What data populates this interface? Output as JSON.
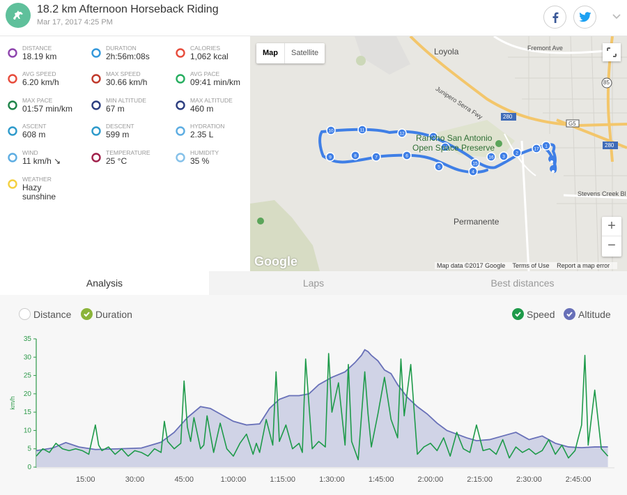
{
  "activity": {
    "title": "18.2 km Afternoon Horseback Riding",
    "datetime": "Mar 17, 2017 4:25 PM",
    "sport_icon": "horse-icon",
    "accent": "#5fc09b"
  },
  "share": {
    "facebook_icon": "f",
    "twitter_icon": "twitter-bird"
  },
  "stats": [
    {
      "label": "DISTANCE",
      "value": "18.19 km",
      "icon": "distance-icon",
      "color": "#8e44ad"
    },
    {
      "label": "DURATION",
      "value": "2h:56m:08s",
      "icon": "stopwatch-icon",
      "color": "#3498db"
    },
    {
      "label": "CALORIES",
      "value": "1,062 kcal",
      "icon": "flame-icon",
      "color": "#e74c3c"
    },
    {
      "label": "AVG SPEED",
      "value": "6.20 km/h",
      "icon": "speedometer-icon",
      "color": "#e74c3c"
    },
    {
      "label": "MAX SPEED",
      "value": "30.66 km/h",
      "icon": "speedometer-icon",
      "color": "#c0392b"
    },
    {
      "label": "AVG PACE",
      "value": "09:41 min/km",
      "icon": "pace-icon",
      "color": "#27ae60"
    },
    {
      "label": "MAX PACE",
      "value": "01:57 min/km",
      "icon": "pace-icon",
      "color": "#1e8449"
    },
    {
      "label": "MIN ALTITUDE",
      "value": "67 m",
      "icon": "mountain-icon",
      "color": "#2c3e80"
    },
    {
      "label": "MAX ALTITUDE",
      "value": "460 m",
      "icon": "mountain-icon",
      "color": "#2c3e80"
    },
    {
      "label": "ASCENT",
      "value": "608 m",
      "icon": "ascent-icon",
      "color": "#2e9acb"
    },
    {
      "label": "DESCENT",
      "value": "599 m",
      "icon": "descent-icon",
      "color": "#2e9acb"
    },
    {
      "label": "HYDRATION",
      "value": "2.35 L",
      "icon": "drops-icon",
      "color": "#5dade2"
    },
    {
      "label": "WIND",
      "value": "11 km/h ↘",
      "icon": "wind-icon",
      "color": "#5dade2"
    },
    {
      "label": "TEMPERATURE",
      "value": "25 °C",
      "icon": "thermometer-icon",
      "color": "#a0204a"
    },
    {
      "label": "HUMIDITY",
      "value": "35 %",
      "icon": "humidity-icon",
      "color": "#85c1e9"
    },
    {
      "label": "WEATHER",
      "value": "Hazy\nsunshine",
      "icon": "sun-haze-icon",
      "color": "#f4d03f"
    }
  ],
  "map": {
    "type_map": "Map",
    "type_satellite": "Satellite",
    "zoom_in": "+",
    "zoom_out": "−",
    "labels": {
      "loyola": "Loyola",
      "fremont": "Fremont Ave",
      "juniper": "Junipero Serra Fwy",
      "rancho1": "Rancho San Antonio",
      "rancho2": "Open Space Preserve",
      "permanente": "Permanente",
      "stevens": "Stevens Creek Bl",
      "i280a": "280",
      "i280b": "280",
      "g5": "G5",
      "r85": "85"
    },
    "google": "Google",
    "footer": {
      "data": "Map data ©2017 Google",
      "terms": "Terms of Use",
      "report": "Report a map error"
    },
    "route_color": "#3f7fe6",
    "markers": [
      "1",
      "2",
      "3",
      "4",
      "5",
      "6",
      "7",
      "8",
      "9",
      "10",
      "11",
      "12",
      "13",
      "14",
      "15",
      "16",
      "17"
    ]
  },
  "tabs": {
    "analysis": "Analysis",
    "laps": "Laps",
    "best": "Best distances"
  },
  "chart_toggles": {
    "distance": "Distance",
    "duration": "Duration",
    "speed": "Speed",
    "altitude": "Altitude",
    "duration_color": "#8bb43a",
    "speed_color": "#1e9a4a",
    "altitude_color": "#6870b8"
  },
  "chart_data": {
    "type": "line",
    "ylabel": "km/h",
    "ylim": [
      0,
      35
    ],
    "yticks": [
      0,
      5,
      10,
      15,
      20,
      25,
      30,
      35
    ],
    "xlim": [
      0,
      176
    ],
    "xticks": [
      15,
      30,
      45,
      60,
      75,
      90,
      105,
      120,
      135,
      150,
      165
    ],
    "xtick_labels": [
      "15:00",
      "30:00",
      "45:00",
      "1:00:00",
      "1:15:00",
      "1:30:00",
      "1:45:00",
      "2:00:00",
      "2:15:00",
      "2:30:00",
      "2:45:00"
    ],
    "series": [
      {
        "name": "Altitude",
        "style": "area",
        "x": [
          0,
          5,
          9,
          13,
          18,
          25,
          32,
          38,
          42,
          46,
          50,
          53,
          56,
          60,
          64,
          68,
          71,
          74,
          77,
          80,
          83,
          86,
          90,
          94,
          97,
          99,
          100,
          101,
          102,
          104,
          106,
          108,
          110,
          113,
          116,
          119,
          122,
          125,
          128,
          131,
          134,
          138,
          142,
          146,
          150,
          154,
          158,
          162,
          166,
          170,
          174
        ],
        "values": [
          4.5,
          5.2,
          6.7,
          5.5,
          4.8,
          5.0,
          5.2,
          6.8,
          9.5,
          13.5,
          16.5,
          16.0,
          14.5,
          12.5,
          11.5,
          11.8,
          16.0,
          18.5,
          19.5,
          19.5,
          20.0,
          22.5,
          24.5,
          26.0,
          28.5,
          30.5,
          32.0,
          31.5,
          30.5,
          29.0,
          26.5,
          25.5,
          22.5,
          19.0,
          16.5,
          14.5,
          12.0,
          10.0,
          9.0,
          8.0,
          7.2,
          7.5,
          8.5,
          9.5,
          7.5,
          8.5,
          6.5,
          5.5,
          5.3,
          5.5,
          5.5
        ]
      },
      {
        "name": "Speed",
        "style": "line",
        "x": [
          0,
          2,
          4,
          6,
          8,
          10,
          12,
          14,
          16,
          18,
          19,
          20,
          22,
          24,
          26,
          28,
          30,
          32,
          34,
          36,
          38,
          39,
          40,
          42,
          44,
          45,
          46,
          47,
          48,
          50,
          51,
          52,
          54,
          56,
          58,
          60,
          62,
          64,
          66,
          67,
          68,
          70,
          72,
          73,
          74,
          76,
          78,
          80,
          81,
          82,
          84,
          86,
          88,
          89,
          90,
          92,
          94,
          95,
          96,
          98,
          100,
          101,
          102,
          104,
          106,
          108,
          110,
          111,
          112,
          114,
          116,
          118,
          120,
          122,
          124,
          126,
          128,
          130,
          132,
          134,
          136,
          138,
          140,
          142,
          144,
          146,
          148,
          150,
          152,
          154,
          156,
          158,
          160,
          162,
          164,
          166,
          167,
          168,
          170,
          172,
          174
        ],
        "values": [
          3.0,
          5.0,
          4.0,
          6.5,
          5.0,
          4.5,
          5.0,
          4.5,
          3.5,
          11.5,
          6.0,
          4.5,
          5.5,
          3.5,
          5.0,
          3.0,
          4.5,
          4.0,
          3.0,
          5.0,
          4.0,
          12.5,
          7.0,
          5.0,
          6.5,
          23.5,
          11.0,
          7.0,
          13.5,
          5.0,
          6.0,
          14.0,
          4.0,
          12.0,
          5.0,
          3.0,
          6.5,
          9.0,
          3.5,
          6.5,
          4.0,
          13.0,
          6.0,
          26.0,
          7.0,
          11.5,
          5.0,
          6.5,
          4.0,
          29.5,
          5.0,
          7.0,
          5.5,
          31.0,
          15.0,
          23.0,
          6.0,
          28.0,
          7.0,
          2.0,
          26.0,
          14.5,
          5.5,
          14.5,
          24.5,
          13.0,
          8.0,
          29.5,
          14.0,
          28.0,
          3.5,
          5.5,
          6.5,
          4.5,
          8.0,
          3.0,
          9.5,
          5.0,
          4.0,
          11.5,
          4.5,
          5.0,
          3.5,
          7.5,
          2.5,
          5.5,
          4.0,
          5.0,
          3.5,
          4.5,
          7.5,
          3.5,
          6.0,
          2.5,
          4.5,
          11.5,
          30.5,
          6.0,
          21.0,
          5.0,
          3.0
        ]
      }
    ],
    "grid": false
  }
}
